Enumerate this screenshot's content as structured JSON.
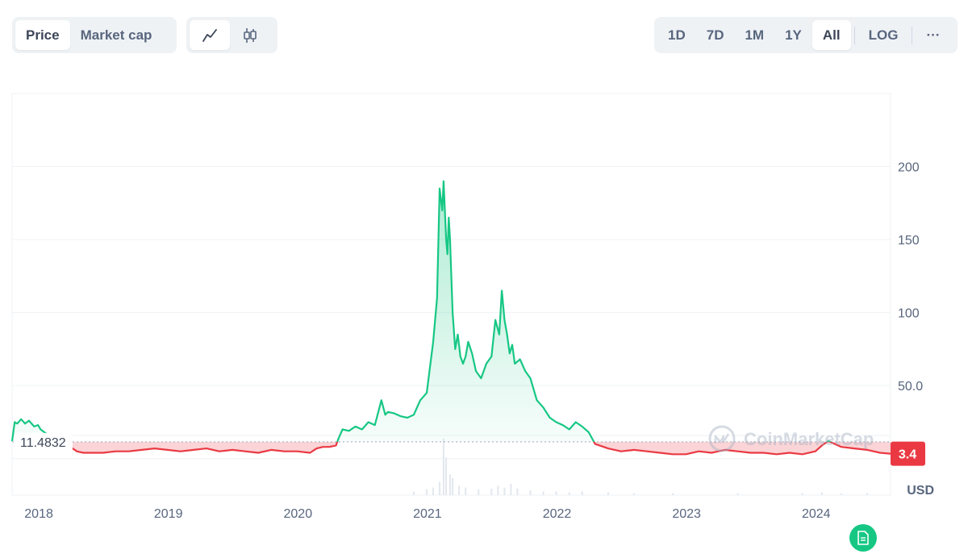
{
  "toolbar": {
    "metric_tabs": [
      "Price",
      "Market cap"
    ],
    "active_metric": "Price",
    "chart_type_icons": [
      "line-chart-icon",
      "candlestick-icon"
    ],
    "range_tabs": [
      "1D",
      "7D",
      "1M",
      "1Y",
      "All"
    ],
    "active_range": "All",
    "log_label": "LOG",
    "more_label": "···"
  },
  "watermark": {
    "text": "CoinMarketCap",
    "icon": "coinmarketcap-logo-icon"
  },
  "colors": {
    "up": "#16c784",
    "down": "#ea3943",
    "grid": "#eff2f5",
    "text": "#58667e",
    "baseline_dots": "#a6b0c3"
  },
  "chart_data": {
    "type": "area",
    "currency_label": "USD",
    "baseline_label": "11.4832",
    "baseline_value": 11.4832,
    "current_price_label": "3.4",
    "current_price_value": 3.4,
    "y_ticks": [
      50.0,
      100,
      150,
      200
    ],
    "y_tick_labels": [
      "50.0",
      "100",
      "150",
      "200"
    ],
    "ylim": [
      -25,
      250
    ],
    "x_ticks": [
      2018,
      2019,
      2020,
      2021,
      2022,
      2023,
      2024
    ],
    "x_tick_labels": [
      "2018",
      "2019",
      "2020",
      "2021",
      "2022",
      "2023",
      "2024"
    ],
    "xlim": [
      2017.9,
      2024.68
    ],
    "grid": true,
    "series": [
      {
        "x": [
          2017.9,
          2017.92,
          2017.94,
          2017.97,
          2018.0,
          2018.03,
          2018.07,
          2018.1,
          2018.12,
          2018.15,
          2018.2,
          2018.25,
          2018.3,
          2018.35,
          2018.4,
          2018.45,
          2018.5,
          2018.6,
          2018.7,
          2018.8,
          2018.9,
          2019.0,
          2019.1,
          2019.2,
          2019.3,
          2019.4,
          2019.5,
          2019.6,
          2019.7,
          2019.8,
          2019.9,
          2020.0,
          2020.1,
          2020.2,
          2020.25,
          2020.3,
          2020.35,
          2020.4,
          2020.42,
          2020.45,
          2020.5,
          2020.55,
          2020.6,
          2020.65,
          2020.7,
          2020.75,
          2020.78,
          2020.8,
          2020.85,
          2020.9,
          2020.95,
          2021.0,
          2021.05,
          2021.1,
          2021.15,
          2021.18,
          2021.2,
          2021.22,
          2021.23,
          2021.25,
          2021.26,
          2021.27,
          2021.28,
          2021.29,
          2021.3,
          2021.32,
          2021.34,
          2021.36,
          2021.38,
          2021.4,
          2021.42,
          2021.45,
          2021.48,
          2021.52,
          2021.56,
          2021.6,
          2021.63,
          2021.66,
          2021.68,
          2021.7,
          2021.72,
          2021.74,
          2021.76,
          2021.78,
          2021.82,
          2021.86,
          2021.9,
          2021.95,
          2022.0,
          2022.05,
          2022.1,
          2022.15,
          2022.2,
          2022.25,
          2022.3,
          2022.35,
          2022.4,
          2022.5,
          2022.6,
          2022.7,
          2022.8,
          2022.9,
          2023.0,
          2023.1,
          2023.2,
          2023.3,
          2023.4,
          2023.5,
          2023.6,
          2023.7,
          2023.8,
          2023.9,
          2024.0,
          2024.1,
          2024.15,
          2024.2,
          2024.3,
          2024.4,
          2024.5,
          2024.6,
          2024.68
        ],
        "values": [
          12,
          25,
          24,
          27,
          24,
          26,
          22,
          23,
          20,
          18,
          15,
          14,
          11,
          8,
          5,
          4,
          4,
          4,
          5,
          5,
          6,
          7,
          6,
          5,
          6,
          7,
          5,
          6,
          5,
          4,
          6,
          5,
          5,
          4,
          7,
          8,
          8,
          9,
          14,
          20,
          19,
          22,
          20,
          25,
          23,
          40,
          30,
          32,
          31,
          29,
          28,
          30,
          40,
          45,
          80,
          110,
          185,
          170,
          190,
          150,
          140,
          165,
          150,
          125,
          100,
          75,
          85,
          70,
          65,
          70,
          80,
          72,
          60,
          55,
          65,
          70,
          95,
          85,
          115,
          95,
          85,
          72,
          78,
          65,
          68,
          60,
          55,
          40,
          35,
          28,
          25,
          23,
          20,
          25,
          22,
          18,
          10,
          7,
          5,
          6,
          5,
          4,
          3,
          3,
          5,
          4,
          6,
          5,
          4,
          4,
          3,
          4,
          3,
          5,
          9,
          12,
          8,
          7,
          6,
          4,
          3.4
        ]
      }
    ],
    "volume": {
      "x": [
        2021.0,
        2021.1,
        2021.15,
        2021.2,
        2021.23,
        2021.25,
        2021.28,
        2021.3,
        2021.35,
        2021.4,
        2021.5,
        2021.6,
        2021.65,
        2021.7,
        2021.75,
        2021.8,
        2021.9,
        2022.0,
        2022.1,
        2022.2,
        2022.3,
        2022.5,
        2022.7,
        2023.0,
        2023.5,
        2024.0,
        2024.15,
        2024.3,
        2024.5
      ],
      "values": [
        4,
        6,
        8,
        14,
        60,
        40,
        22,
        18,
        10,
        8,
        6,
        7,
        10,
        8,
        12,
        7,
        5,
        4,
        4,
        3,
        4,
        3,
        2,
        2,
        2,
        2,
        3,
        2,
        2
      ]
    }
  }
}
